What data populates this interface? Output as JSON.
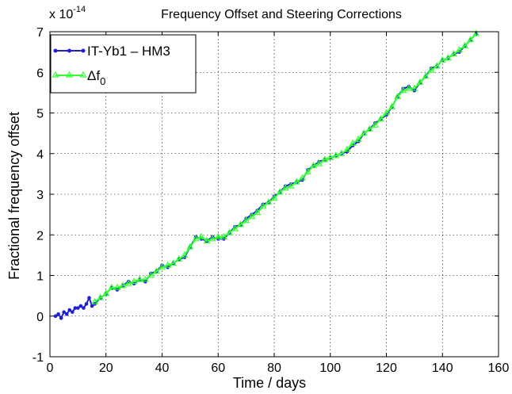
{
  "chart_data": {
    "type": "line",
    "title": "Frequency Offset and Steering Corrections",
    "xlabel": "Time / days",
    "ylabel": "Fractional frequency offset",
    "exponent_base": "x 10",
    "exponent_power": "-14",
    "xlim": [
      0,
      160
    ],
    "ylim": [
      -1,
      7
    ],
    "xticks": [
      "0",
      "20",
      "40",
      "60",
      "80",
      "100",
      "120",
      "140",
      "160"
    ],
    "yticks": [
      "-1",
      "0",
      "1",
      "2",
      "3",
      "4",
      "5",
      "6",
      "7"
    ],
    "grid": true,
    "legend_position": "top-left",
    "series": [
      {
        "name": "IT-Yb1 – HM3",
        "color": "#1f1fd6",
        "marker": "dot",
        "x": [
          2,
          3,
          4,
          5,
          6,
          7,
          8,
          9,
          10,
          11,
          12,
          13,
          14,
          15,
          16,
          18,
          20,
          22,
          24,
          26,
          28,
          30,
          32,
          34,
          36,
          38,
          40,
          42,
          44,
          46,
          48,
          50,
          52,
          54,
          56,
          58,
          60,
          62,
          64,
          66,
          68,
          70,
          72,
          74,
          76,
          78,
          80,
          82,
          84,
          86,
          88,
          90,
          92,
          94,
          96,
          98,
          100,
          102,
          104,
          106,
          108,
          110,
          112,
          114,
          116,
          118,
          120,
          122,
          124,
          126,
          128,
          130,
          132,
          134,
          136,
          138,
          140,
          142,
          144,
          146,
          148,
          150,
          152
        ],
        "y": [
          0.0,
          0.05,
          -0.05,
          0.1,
          0.05,
          0.15,
          0.1,
          0.2,
          0.2,
          0.25,
          0.2,
          0.3,
          0.45,
          0.25,
          0.3,
          0.45,
          0.55,
          0.7,
          0.65,
          0.75,
          0.85,
          0.8,
          0.9,
          0.85,
          1.05,
          1.1,
          1.25,
          1.2,
          1.3,
          1.4,
          1.45,
          1.7,
          1.95,
          1.9,
          1.85,
          1.95,
          1.9,
          1.9,
          2.05,
          2.2,
          2.25,
          2.4,
          2.5,
          2.6,
          2.75,
          2.8,
          2.95,
          3.05,
          3.2,
          3.25,
          3.3,
          3.35,
          3.6,
          3.7,
          3.8,
          3.85,
          3.9,
          3.95,
          4.0,
          4.05,
          4.2,
          4.3,
          4.5,
          4.6,
          4.75,
          4.85,
          4.95,
          5.15,
          5.4,
          5.6,
          5.65,
          5.55,
          5.75,
          5.9,
          6.1,
          6.15,
          6.3,
          6.35,
          6.45,
          6.5,
          6.65,
          6.8,
          6.95
        ]
      },
      {
        "name": "Δf",
        "name_sub": "0",
        "color": "#33ff33",
        "marker": "triangle",
        "x": [
          16,
          18,
          20,
          22,
          24,
          26,
          28,
          30,
          32,
          34,
          36,
          38,
          40,
          42,
          44,
          46,
          48,
          50,
          52,
          54,
          56,
          58,
          60,
          62,
          64,
          66,
          68,
          70,
          72,
          74,
          76,
          78,
          80,
          82,
          84,
          86,
          88,
          90,
          92,
          94,
          96,
          98,
          100,
          102,
          104,
          106,
          108,
          110,
          112,
          114,
          116,
          118,
          120,
          122,
          124,
          126,
          128,
          130,
          132,
          134,
          136,
          138,
          140,
          142,
          144,
          146,
          148,
          150,
          152
        ],
        "y": [
          0.35,
          0.45,
          0.55,
          0.7,
          0.7,
          0.75,
          0.8,
          0.85,
          0.9,
          0.9,
          1.0,
          1.1,
          1.2,
          1.25,
          1.3,
          1.4,
          1.5,
          1.7,
          1.9,
          1.95,
          1.85,
          1.9,
          1.95,
          1.95,
          2.05,
          2.15,
          2.25,
          2.35,
          2.45,
          2.55,
          2.7,
          2.8,
          2.9,
          3.05,
          3.15,
          3.2,
          3.3,
          3.4,
          3.55,
          3.7,
          3.75,
          3.85,
          3.9,
          3.95,
          4.0,
          4.1,
          4.25,
          4.35,
          4.5,
          4.6,
          4.7,
          4.85,
          5.0,
          5.15,
          5.4,
          5.55,
          5.6,
          5.6,
          5.75,
          5.9,
          6.05,
          6.15,
          6.3,
          6.35,
          6.45,
          6.55,
          6.65,
          6.8,
          6.95
        ]
      }
    ]
  }
}
